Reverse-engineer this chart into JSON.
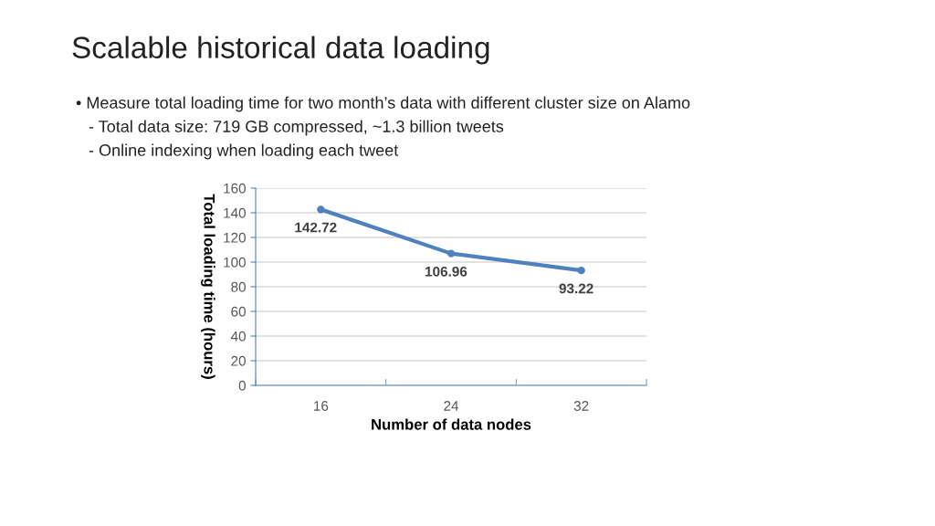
{
  "chart_data": {
    "type": "line",
    "title": "Scalable historical data loading",
    "annotations": [
      "• Measure total loading time for two month’s data with different cluster size on Alamo",
      "- Total data size: 719 GB compressed, ~1.3 billion tweets",
      "- Online indexing when loading each tweet"
    ],
    "categories": [
      "16",
      "24",
      "32"
    ],
    "series": [
      {
        "color": "#4f81bd",
        "values": [
          142.72,
          106.96,
          93.22
        ]
      }
    ],
    "xlabel": "Number of data nodes",
    "ylabel": "Total loading time (hours)",
    "ylim": [
      0,
      160
    ],
    "yticks": [
      0,
      20,
      40,
      60,
      80,
      100,
      120,
      140,
      160
    ],
    "grid": "y",
    "marker": "circle",
    "line_style": "solid",
    "data_labels": true,
    "legend": false
  }
}
